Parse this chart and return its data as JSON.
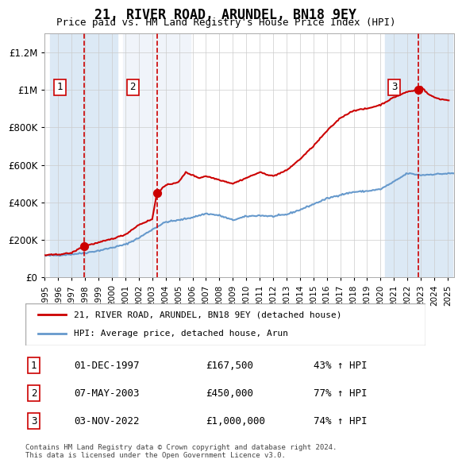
{
  "title": "21, RIVER ROAD, ARUNDEL, BN18 9EY",
  "subtitle": "Price paid vs. HM Land Registry's House Price Index (HPI)",
  "ylabel": "",
  "purchases": [
    {
      "date": "1997-12-01",
      "price": 167500,
      "label": "1"
    },
    {
      "date": "2003-05-07",
      "price": 450000,
      "label": "2"
    },
    {
      "date": "2022-11-03",
      "price": 1000000,
      "label": "3"
    }
  ],
  "purchase_labels_text": [
    "1   01-DEC-1997   £167,500   43% ↑ HPI",
    "2   07-MAY-2003   £450,000   77% ↑ HPI",
    "3   03-NOV-2022   £1,000,000   74% ↑ HPI"
  ],
  "legend_line1": "21, RIVER ROAD, ARUNDEL, BN18 9EY (detached house)",
  "legend_line2": "HPI: Average price, detached house, Arun",
  "footer": "Contains HM Land Registry data © Crown copyright and database right 2024.\nThis data is licensed under the Open Government Licence v3.0.",
  "price_line_color": "#cc0000",
  "hpi_line_color": "#6699cc",
  "shade1_color": "#dce9f5",
  "shade2_color": "#f0f4fa",
  "dashed_color": "#cc0000",
  "ylim": [
    0,
    1300000
  ],
  "yticks": [
    0,
    200000,
    400000,
    600000,
    800000,
    1000000,
    1200000
  ],
  "ytick_labels": [
    "£0",
    "£200K",
    "£400K",
    "£600K",
    "£800K",
    "£1M",
    "£1.2M"
  ],
  "xstart": 1995.0,
  "xend": 2025.5,
  "xticks": [
    1995,
    1996,
    1997,
    1998,
    1999,
    2000,
    2001,
    2002,
    2003,
    2004,
    2005,
    2006,
    2007,
    2008,
    2009,
    2010,
    2011,
    2012,
    2013,
    2014,
    2015,
    2016,
    2017,
    2018,
    2019,
    2020,
    2021,
    2022,
    2023,
    2024,
    2025
  ]
}
